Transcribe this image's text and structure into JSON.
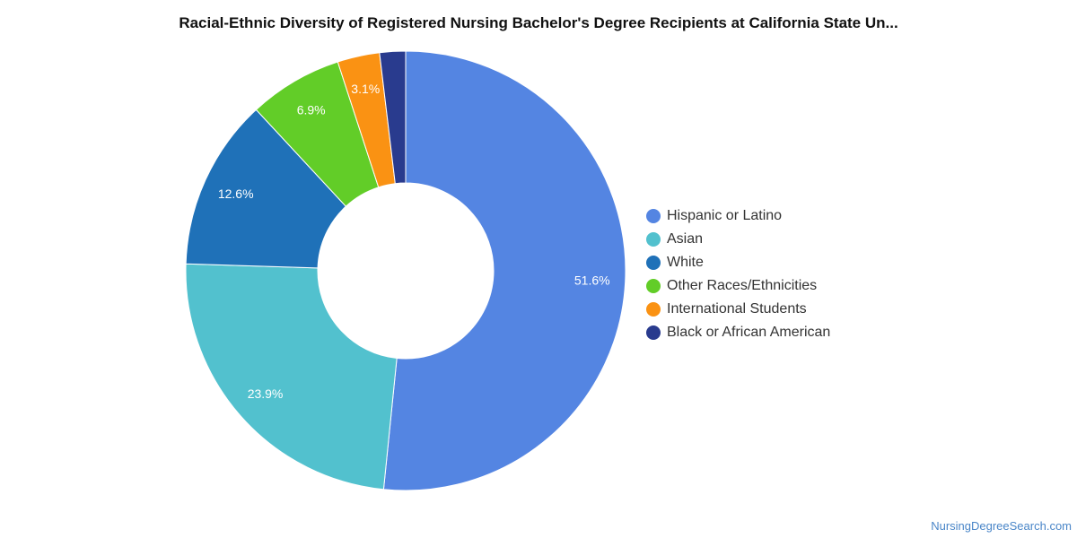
{
  "chart_data": {
    "type": "pie",
    "title": "Racial-Ethnic Diversity of Registered Nursing Bachelor's Degree Recipients at California State Un...",
    "categories": [
      "Hispanic or Latino",
      "Asian",
      "White",
      "Other Races/Ethnicities",
      "International Students",
      "Black or African American"
    ],
    "values": [
      51.6,
      23.9,
      12.6,
      6.9,
      3.1,
      1.9
    ],
    "value_labels": [
      "51.6%",
      "23.9%",
      "12.6%",
      "6.9%",
      "3.1%",
      ""
    ],
    "colors": [
      "#5485e2",
      "#52c1ce",
      "#1f71b8",
      "#62cd28",
      "#fa9213",
      "#293b8e"
    ],
    "donut": true,
    "legend_position": "right"
  },
  "footer": {
    "source": "NursingDegreeSearch.com"
  }
}
